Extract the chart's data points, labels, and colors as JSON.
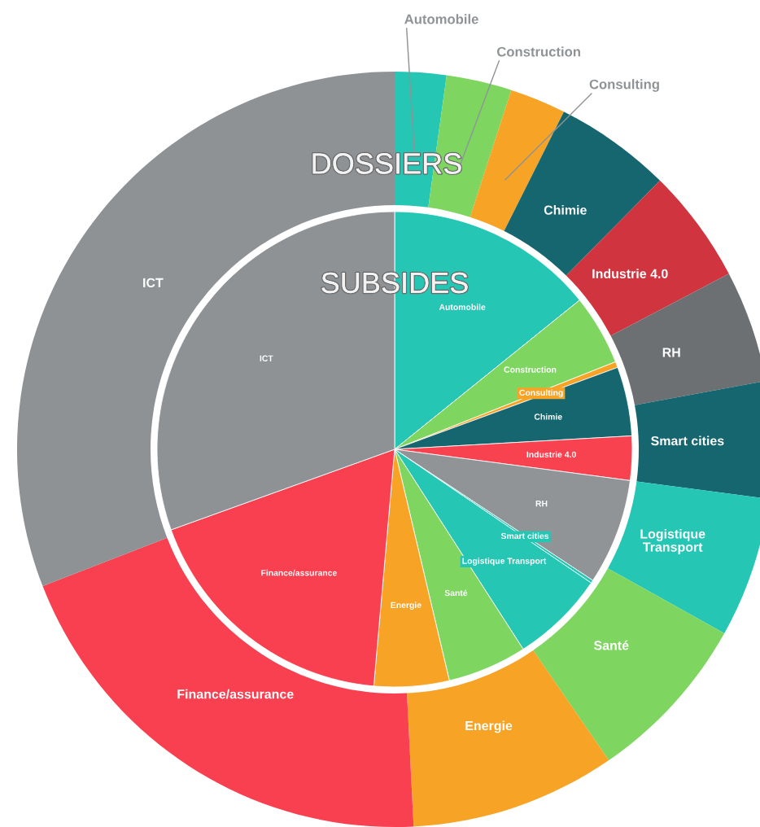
{
  "chart_data": {
    "type": "pie",
    "categories": [
      "Automobile",
      "Construction",
      "Consulting",
      "Chimie",
      "Industrie 4.0",
      "RH",
      "Smart cities",
      "Logistique Transport",
      "Santé",
      "Energie",
      "Finance/assurance",
      "ICT"
    ],
    "series": [
      {
        "name": "SUBSIDES",
        "values": [
          14.2,
          4.8,
          0.4,
          4.7,
          3.0,
          7.2,
          0.2,
          6.4,
          5.4,
          5.1,
          18.1,
          30.5
        ],
        "colors": [
          "#26c6b5",
          "#7ed661",
          "#f7a325",
          "#166670",
          "#f94250",
          "#909497",
          "#26c6b5",
          "#26c6b5",
          "#7ed661",
          "#f7a325",
          "#f84050",
          "#8e9295"
        ]
      },
      {
        "name": "DOSSIERS",
        "values": [
          2.2,
          2.8,
          2.4,
          5.0,
          4.9,
          4.8,
          5.0,
          6.0,
          7.3,
          8.8,
          19.9,
          30.9
        ],
        "colors": [
          "#26c6b5",
          "#7ed661",
          "#f7a325",
          "#166670",
          "#d0343f",
          "#6d7073",
          "#166670",
          "#26c6b5",
          "#7ed661",
          "#f7a325",
          "#f84050",
          "#8e9295"
        ]
      }
    ]
  }
}
